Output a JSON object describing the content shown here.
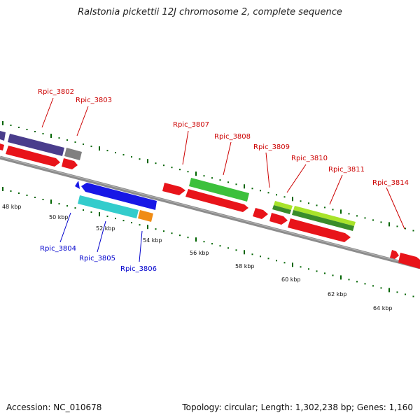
{
  "title": "Ralstonia pickettii 12J chromosome 2, complete sequence",
  "footer": {
    "accession": "Accession: NC_010678",
    "topology": "Topology: circular; Length: 1,302,238 bp; Genes: 1,160"
  },
  "colors": {
    "backbone": "#8c8c8c",
    "gc_tick": "#006400",
    "top_label": "#cc0000",
    "bottom_label": "#0000cc",
    "gene_red": "#e8141a",
    "gene_purple": "#4a3d8c",
    "gene_gray": "#808080",
    "gene_green": "#3cc03c",
    "gene_darkgreen": "#3a8c2a",
    "gene_lime": "#a8e32a",
    "gene_blue": "#1717e6",
    "gene_cyan": "#33cccc",
    "gene_orange": "#f08c14"
  },
  "scale_labels": [
    "48 kbp",
    "50 kbp",
    "52 kbp",
    "54 kbp",
    "56 kbp",
    "58 kbp",
    "60 kbp",
    "62 kbp",
    "64 kbp"
  ],
  "top_genes": [
    "Rpic_3802",
    "Rpic_3803",
    "Rpic_3807",
    "Rpic_3808",
    "Rpic_3809",
    "Rpic_3810",
    "Rpic_3811",
    "Rpic_3814"
  ],
  "bottom_genes": [
    "Rpic_3804",
    "Rpic_3805",
    "Rpic_3806"
  ]
}
